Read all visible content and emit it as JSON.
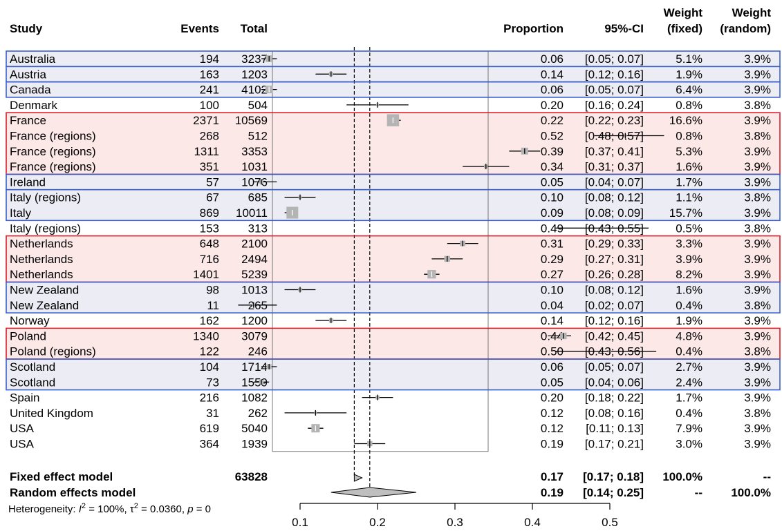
{
  "headers": {
    "study": "Study",
    "events": "Events",
    "total": "Total",
    "proportion": "Proportion",
    "ci": "95%-CI",
    "weight_fixed_1": "Weight",
    "weight_fixed_2": "(fixed)",
    "weight_random_1": "Weight",
    "weight_random_2": "(random)"
  },
  "chart_data": {
    "type": "forest",
    "x_axis": {
      "ticks": [
        0.1,
        0.2,
        0.3,
        0.4,
        0.5
      ],
      "tick_labels": [
        "0.1",
        "0.2",
        "0.3",
        "0.4",
        "0.5"
      ]
    },
    "colors": {
      "blue_group": "#3a5fc8",
      "red_group": "#d81e2a",
      "red_fill": "#fde8e8",
      "blue_fill": "#ececf4",
      "square": "#b4b4b4",
      "diamond": "#bfbfbf"
    },
    "studies": [
      {
        "study": "Australia",
        "events": "194",
        "total": "3237",
        "prop": 0.06,
        "lo": 0.05,
        "hi": 0.07,
        "prop_text": "0.06",
        "ci_text": "[0.05; 0.07]",
        "wf": "5.1%",
        "wr": "3.9%",
        "wf_num": 5.1
      },
      {
        "study": "Austria",
        "events": "163",
        "total": "1203",
        "prop": 0.14,
        "lo": 0.12,
        "hi": 0.16,
        "prop_text": "0.14",
        "ci_text": "[0.12; 0.16]",
        "wf": "1.9%",
        "wr": "3.9%",
        "wf_num": 1.9
      },
      {
        "study": "Canada",
        "events": "241",
        "total": "4102",
        "prop": 0.06,
        "lo": 0.05,
        "hi": 0.07,
        "prop_text": "0.06",
        "ci_text": "[0.05; 0.07]",
        "wf": "6.4%",
        "wr": "3.9%",
        "wf_num": 6.4
      },
      {
        "study": "Denmark",
        "events": "100",
        "total": "504",
        "prop": 0.2,
        "lo": 0.16,
        "hi": 0.24,
        "prop_text": "0.20",
        "ci_text": "[0.16; 0.24]",
        "wf": "0.8%",
        "wr": "3.8%",
        "wf_num": 0.8
      },
      {
        "study": "France",
        "events": "2371",
        "total": "10569",
        "prop": 0.22,
        "lo": 0.22,
        "hi": 0.23,
        "prop_text": "0.22",
        "ci_text": "[0.22; 0.23]",
        "wf": "16.6%",
        "wr": "3.9%",
        "wf_num": 16.6
      },
      {
        "study": "France (regions)",
        "events": "268",
        "total": "512",
        "prop": 0.52,
        "lo": 0.48,
        "hi": 0.57,
        "prop_text": "0.52",
        "ci_text": "[0.48; 0.57]",
        "wf": "0.8%",
        "wr": "3.8%",
        "wf_num": 0.8
      },
      {
        "study": "France (regions)",
        "events": "1311",
        "total": "3353",
        "prop": 0.39,
        "lo": 0.37,
        "hi": 0.41,
        "prop_text": "0.39",
        "ci_text": "[0.37; 0.41]",
        "wf": "5.3%",
        "wr": "3.9%",
        "wf_num": 5.3
      },
      {
        "study": "France (regions)",
        "events": "351",
        "total": "1031",
        "prop": 0.34,
        "lo": 0.31,
        "hi": 0.37,
        "prop_text": "0.34",
        "ci_text": "[0.31; 0.37]",
        "wf": "1.6%",
        "wr": "3.9%",
        "wf_num": 1.6
      },
      {
        "study": "Ireland",
        "events": "57",
        "total": "1076",
        "prop": 0.05,
        "lo": 0.04,
        "hi": 0.07,
        "prop_text": "0.05",
        "ci_text": "[0.04; 0.07]",
        "wf": "1.7%",
        "wr": "3.9%",
        "wf_num": 1.7
      },
      {
        "study": "Italy (regions)",
        "events": "67",
        "total": "685",
        "prop": 0.1,
        "lo": 0.08,
        "hi": 0.12,
        "prop_text": "0.10",
        "ci_text": "[0.08; 0.12]",
        "wf": "1.1%",
        "wr": "3.8%",
        "wf_num": 1.1
      },
      {
        "study": "Italy",
        "events": "869",
        "total": "10011",
        "prop": 0.09,
        "lo": 0.08,
        "hi": 0.09,
        "prop_text": "0.09",
        "ci_text": "[0.08; 0.09]",
        "wf": "15.7%",
        "wr": "3.9%",
        "wf_num": 15.7
      },
      {
        "study": "Italy (regions)",
        "events": "153",
        "total": "313",
        "prop": 0.49,
        "lo": 0.43,
        "hi": 0.55,
        "prop_text": "0.49",
        "ci_text": "[0.43; 0.55]",
        "wf": "0.5%",
        "wr": "3.8%",
        "wf_num": 0.5
      },
      {
        "study": "Netherlands",
        "events": "648",
        "total": "2100",
        "prop": 0.31,
        "lo": 0.29,
        "hi": 0.33,
        "prop_text": "0.31",
        "ci_text": "[0.29; 0.33]",
        "wf": "3.3%",
        "wr": "3.9%",
        "wf_num": 3.3
      },
      {
        "study": "Netherlands",
        "events": "716",
        "total": "2494",
        "prop": 0.29,
        "lo": 0.27,
        "hi": 0.31,
        "prop_text": "0.29",
        "ci_text": "[0.27; 0.31]",
        "wf": "3.9%",
        "wr": "3.9%",
        "wf_num": 3.9
      },
      {
        "study": "Netherlands",
        "events": "1401",
        "total": "5239",
        "prop": 0.27,
        "lo": 0.26,
        "hi": 0.28,
        "prop_text": "0.27",
        "ci_text": "[0.26; 0.28]",
        "wf": "8.2%",
        "wr": "3.9%",
        "wf_num": 8.2
      },
      {
        "study": "New Zealand",
        "events": "98",
        "total": "1013",
        "prop": 0.1,
        "lo": 0.08,
        "hi": 0.12,
        "prop_text": "0.10",
        "ci_text": "[0.08; 0.12]",
        "wf": "1.6%",
        "wr": "3.9%",
        "wf_num": 1.6
      },
      {
        "study": "New Zealand",
        "events": "11",
        "total": "265",
        "prop": 0.04,
        "lo": 0.02,
        "hi": 0.07,
        "prop_text": "0.04",
        "ci_text": "[0.02; 0.07]",
        "wf": "0.4%",
        "wr": "3.8%",
        "wf_num": 0.4
      },
      {
        "study": "Norway",
        "events": "162",
        "total": "1200",
        "prop": 0.14,
        "lo": 0.12,
        "hi": 0.16,
        "prop_text": "0.14",
        "ci_text": "[0.12; 0.16]",
        "wf": "1.9%",
        "wr": "3.9%",
        "wf_num": 1.9
      },
      {
        "study": "Poland",
        "events": "1340",
        "total": "3079",
        "prop": 0.44,
        "lo": 0.42,
        "hi": 0.45,
        "prop_text": "0.44",
        "ci_text": "[0.42; 0.45]",
        "wf": "4.8%",
        "wr": "3.9%",
        "wf_num": 4.8
      },
      {
        "study": "Poland (regions)",
        "events": "122",
        "total": "246",
        "prop": 0.5,
        "lo": 0.43,
        "hi": 0.56,
        "prop_text": "0.50",
        "ci_text": "[0.43; 0.56]",
        "wf": "0.4%",
        "wr": "3.8%",
        "wf_num": 0.4
      },
      {
        "study": "Scotland",
        "events": "104",
        "total": "1714",
        "prop": 0.06,
        "lo": 0.05,
        "hi": 0.07,
        "prop_text": "0.06",
        "ci_text": "[0.05; 0.07]",
        "wf": "2.7%",
        "wr": "3.9%",
        "wf_num": 2.7
      },
      {
        "study": "Scotland",
        "events": "73",
        "total": "1559",
        "prop": 0.05,
        "lo": 0.04,
        "hi": 0.06,
        "prop_text": "0.05",
        "ci_text": "[0.04; 0.06]",
        "wf": "2.4%",
        "wr": "3.9%",
        "wf_num": 2.4
      },
      {
        "study": "Spain",
        "events": "216",
        "total": "1082",
        "prop": 0.2,
        "lo": 0.18,
        "hi": 0.22,
        "prop_text": "0.20",
        "ci_text": "[0.18; 0.22]",
        "wf": "1.7%",
        "wr": "3.9%",
        "wf_num": 1.7
      },
      {
        "study": "United Kingdom",
        "events": "31",
        "total": "262",
        "prop": 0.12,
        "lo": 0.08,
        "hi": 0.16,
        "prop_text": "0.12",
        "ci_text": "[0.08; 0.16]",
        "wf": "0.4%",
        "wr": "3.8%",
        "wf_num": 0.4
      },
      {
        "study": "USA",
        "events": "619",
        "total": "5040",
        "prop": 0.12,
        "lo": 0.11,
        "hi": 0.13,
        "prop_text": "0.12",
        "ci_text": "[0.11; 0.13]",
        "wf": "7.9%",
        "wr": "3.9%",
        "wf_num": 7.9
      },
      {
        "study": "USA",
        "events": "364",
        "total": "1939",
        "prop": 0.19,
        "lo": 0.17,
        "hi": 0.21,
        "prop_text": "0.19",
        "ci_text": "[0.17; 0.21]",
        "wf": "3.0%",
        "wr": "3.9%",
        "wf_num": 3.0
      }
    ],
    "groups": [
      {
        "rows": [
          0
        ],
        "color": "blue"
      },
      {
        "rows": [
          1
        ],
        "color": "blue"
      },
      {
        "rows": [
          2
        ],
        "color": "blue"
      },
      {
        "rows": [
          4,
          5,
          6,
          7
        ],
        "color": "red"
      },
      {
        "rows": [
          8
        ],
        "color": "blue"
      },
      {
        "rows": [
          9,
          10
        ],
        "color": "blue"
      },
      {
        "rows": [
          12,
          13,
          14
        ],
        "color": "red"
      },
      {
        "rows": [
          15,
          16
        ],
        "color": "blue"
      },
      {
        "rows": [
          18,
          19
        ],
        "color": "red"
      },
      {
        "rows": [
          20,
          21
        ],
        "color": "blue"
      }
    ],
    "fixed": {
      "label": "Fixed effect model",
      "total": "63828",
      "prop": 0.17,
      "lo": 0.17,
      "hi": 0.18,
      "prop_text": "0.17",
      "ci_text": "[0.17; 0.18]",
      "wf": "100.0%",
      "wr": "--"
    },
    "random": {
      "label": "Random effects model",
      "prop": 0.19,
      "lo": 0.14,
      "hi": 0.25,
      "prop_text": "0.19",
      "ci_text": "[0.14; 0.25]",
      "wf": "--",
      "wr": "100.0%"
    },
    "heterogeneity": {
      "prefix": "Heterogeneity: ",
      "i2_value": " = 100%, ",
      "tau2_value": " = 0.0360, ",
      "p_value": " = 0"
    }
  }
}
